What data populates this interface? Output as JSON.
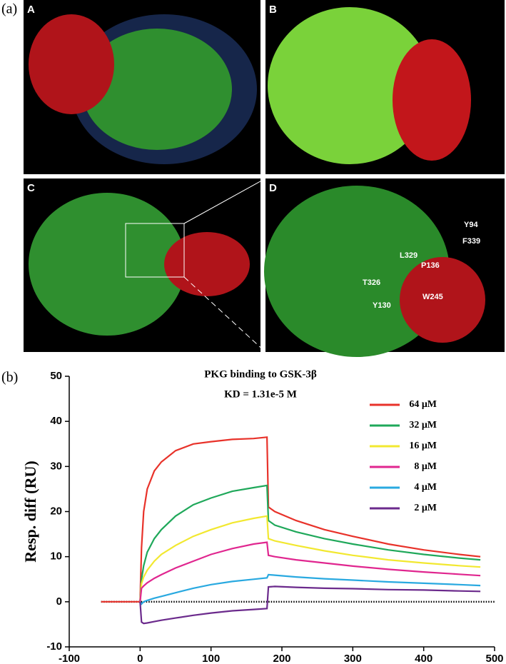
{
  "figure_labels": [
    "(a)",
    "(b)"
  ],
  "panels": [
    {
      "label": "A"
    },
    {
      "label": "B"
    },
    {
      "label": "C"
    },
    {
      "label": "D"
    }
  ],
  "residues": [
    "Y94",
    "F339",
    "L329",
    "P136",
    "T326",
    "W245",
    "Y130"
  ],
  "chart_data": {
    "type": "line",
    "title": "PKG binding to GSK-3β",
    "annotation": "KD = 1.31e-5 M",
    "y_label": "Resp. diff (RU)",
    "x": [
      -55,
      -20,
      0,
      2,
      5,
      10,
      20,
      30,
      50,
      75,
      100,
      130,
      160,
      179,
      181,
      190,
      220,
      260,
      300,
      350,
      400,
      450,
      480
    ],
    "series": [
      {
        "name": "64 μM",
        "color": "#e8322a",
        "values": [
          0,
          0,
          0,
          12,
          20,
          25,
          29,
          31,
          33.5,
          35,
          35.5,
          36,
          36.2,
          36.5,
          21,
          20,
          18,
          16,
          14.5,
          12.8,
          11.5,
          10.5,
          10
        ]
      },
      {
        "name": "32 μM",
        "color": "#1fa85a",
        "values": [
          null,
          null,
          0,
          5,
          8,
          11,
          14,
          16,
          19,
          21.5,
          23,
          24.5,
          25.3,
          25.8,
          18,
          17,
          15.5,
          14,
          12.8,
          11.5,
          10.5,
          9.7,
          9.3
        ]
      },
      {
        "name": "16 μM",
        "color": "#f2e830",
        "values": [
          null,
          null,
          0,
          4,
          5.5,
          7,
          9,
          10.5,
          12.5,
          14.5,
          16,
          17.5,
          18.5,
          19,
          14,
          13.5,
          12.5,
          11.3,
          10.3,
          9.3,
          8.6,
          8,
          7.7
        ]
      },
      {
        "name": "8 μM",
        "color": "#e0268f",
        "values": [
          null,
          null,
          0,
          3,
          3.5,
          4.2,
          5.2,
          6,
          7.5,
          9,
          10.5,
          11.8,
          12.8,
          13.2,
          10.3,
          10,
          9.3,
          8.6,
          7.9,
          7.2,
          6.6,
          6.1,
          5.8
        ]
      },
      {
        "name": "4 μM",
        "color": "#29a9e0",
        "values": [
          null,
          null,
          0,
          -0.5,
          0,
          0.3,
          0.8,
          1.2,
          2,
          3,
          3.8,
          4.5,
          5,
          5.3,
          6,
          5.9,
          5.5,
          5.1,
          4.8,
          4.4,
          4.1,
          3.8,
          3.6
        ]
      },
      {
        "name": "2 μM",
        "color": "#6b2a8c",
        "values": [
          null,
          null,
          0,
          -4.5,
          -4.8,
          -4.7,
          -4.4,
          -4.1,
          -3.6,
          -3,
          -2.5,
          -2,
          -1.7,
          -1.5,
          3.3,
          3.4,
          3.2,
          3,
          2.9,
          2.7,
          2.6,
          2.4,
          2.3
        ]
      }
    ],
    "xlim": [
      -100,
      500
    ],
    "xticks": [
      -100,
      0,
      100,
      200,
      300,
      400,
      500
    ],
    "ylim": [
      -10,
      50
    ],
    "yticks": [
      -10,
      0,
      10,
      20,
      30,
      40,
      50
    ],
    "zero_line": true
  }
}
